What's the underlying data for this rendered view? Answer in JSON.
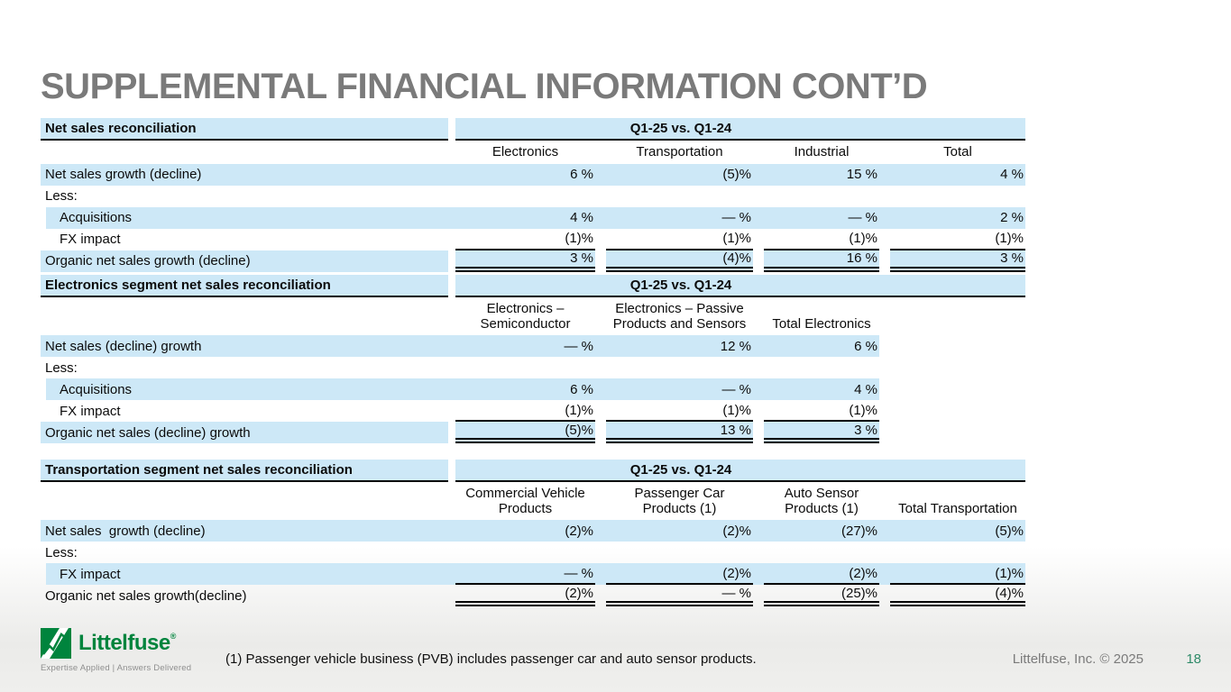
{
  "title": "SUPPLEMENTAL FINANCIAL INFORMATION CONT’D",
  "colors": {
    "band_blue": "#cde8f7",
    "title_gray": "#7a7a7a",
    "logo_green": "#00843D",
    "page_number_green": "#2e8a68"
  },
  "tables": [
    {
      "name": "Net sales reconciliation",
      "period": "Q1-25 vs. Q1-24",
      "columns": [
        "Electronics",
        "Transportation",
        "Industrial",
        "Total"
      ],
      "rows": [
        {
          "label": "Net sales growth (decline)",
          "indent": false,
          "values": [
            "6 %",
            "(5)%",
            "15 %",
            "4 %"
          ]
        },
        {
          "label": "Less:",
          "indent": false,
          "values": []
        },
        {
          "label": "Acquisitions",
          "indent": true,
          "values": [
            "4 %",
            "— %",
            "— %",
            "2 %"
          ]
        },
        {
          "label": "FX impact",
          "indent": true,
          "values": [
            "(1)%",
            "(1)%",
            "(1)%",
            "(1)%"
          ]
        },
        {
          "label": "Organic net sales growth (decline)",
          "indent": false,
          "values": [
            "3 %",
            "(4)%",
            "16 %",
            "3 %"
          ]
        }
      ]
    },
    {
      "name": "Electronics segment net sales reconciliation",
      "period": "Q1-25 vs. Q1-24",
      "columns": [
        "Electronics – Semiconductor",
        "Electronics – Passive Products and Sensors",
        "Total Electronics"
      ],
      "rows": [
        {
          "label": "Net sales (decline) growth",
          "indent": false,
          "values": [
            "— %",
            "12 %",
            "6 %"
          ]
        },
        {
          "label": "Less:",
          "indent": false,
          "values": []
        },
        {
          "label": "Acquisitions",
          "indent": true,
          "values": [
            "6 %",
            "— %",
            "4 %"
          ]
        },
        {
          "label": "FX impact",
          "indent": true,
          "values": [
            "(1)%",
            "(1)%",
            "(1)%"
          ]
        },
        {
          "label": "Organic net sales (decline) growth",
          "indent": false,
          "values": [
            "(5)%",
            "13 %",
            "3 %"
          ]
        }
      ]
    },
    {
      "name": "Transportation segment net sales reconciliation",
      "period": "Q1-25 vs. Q1-24",
      "columns": [
        "Commercial Vehicle Products",
        "Passenger Car Products (1)",
        "Auto Sensor Products (1)",
        "Total Transportation"
      ],
      "rows": [
        {
          "label": "Net sales  growth (decline)",
          "indent": false,
          "values": [
            "(2)%",
            "(2)%",
            "(27)%",
            "(5)%"
          ]
        },
        {
          "label": "Less:",
          "indent": false,
          "values": []
        },
        {
          "label": "FX impact",
          "indent": true,
          "values": [
            "— %",
            "(2)%",
            "(2)%",
            "(1)%"
          ]
        },
        {
          "label": "Organic net sales growth(decline)",
          "indent": false,
          "values": [
            "(2)%",
            "— %",
            "(25)%",
            "(4)%"
          ]
        }
      ]
    }
  ],
  "footer": {
    "logo_word": "Littelfuse",
    "logo_reg": "®",
    "tagline": "Expertise Applied | Answers Delivered",
    "footnote": "(1) Passenger vehicle business (PVB) includes passenger car and auto sensor products.",
    "copyright": "Littelfuse, Inc. © 2025",
    "page_number": "18"
  }
}
